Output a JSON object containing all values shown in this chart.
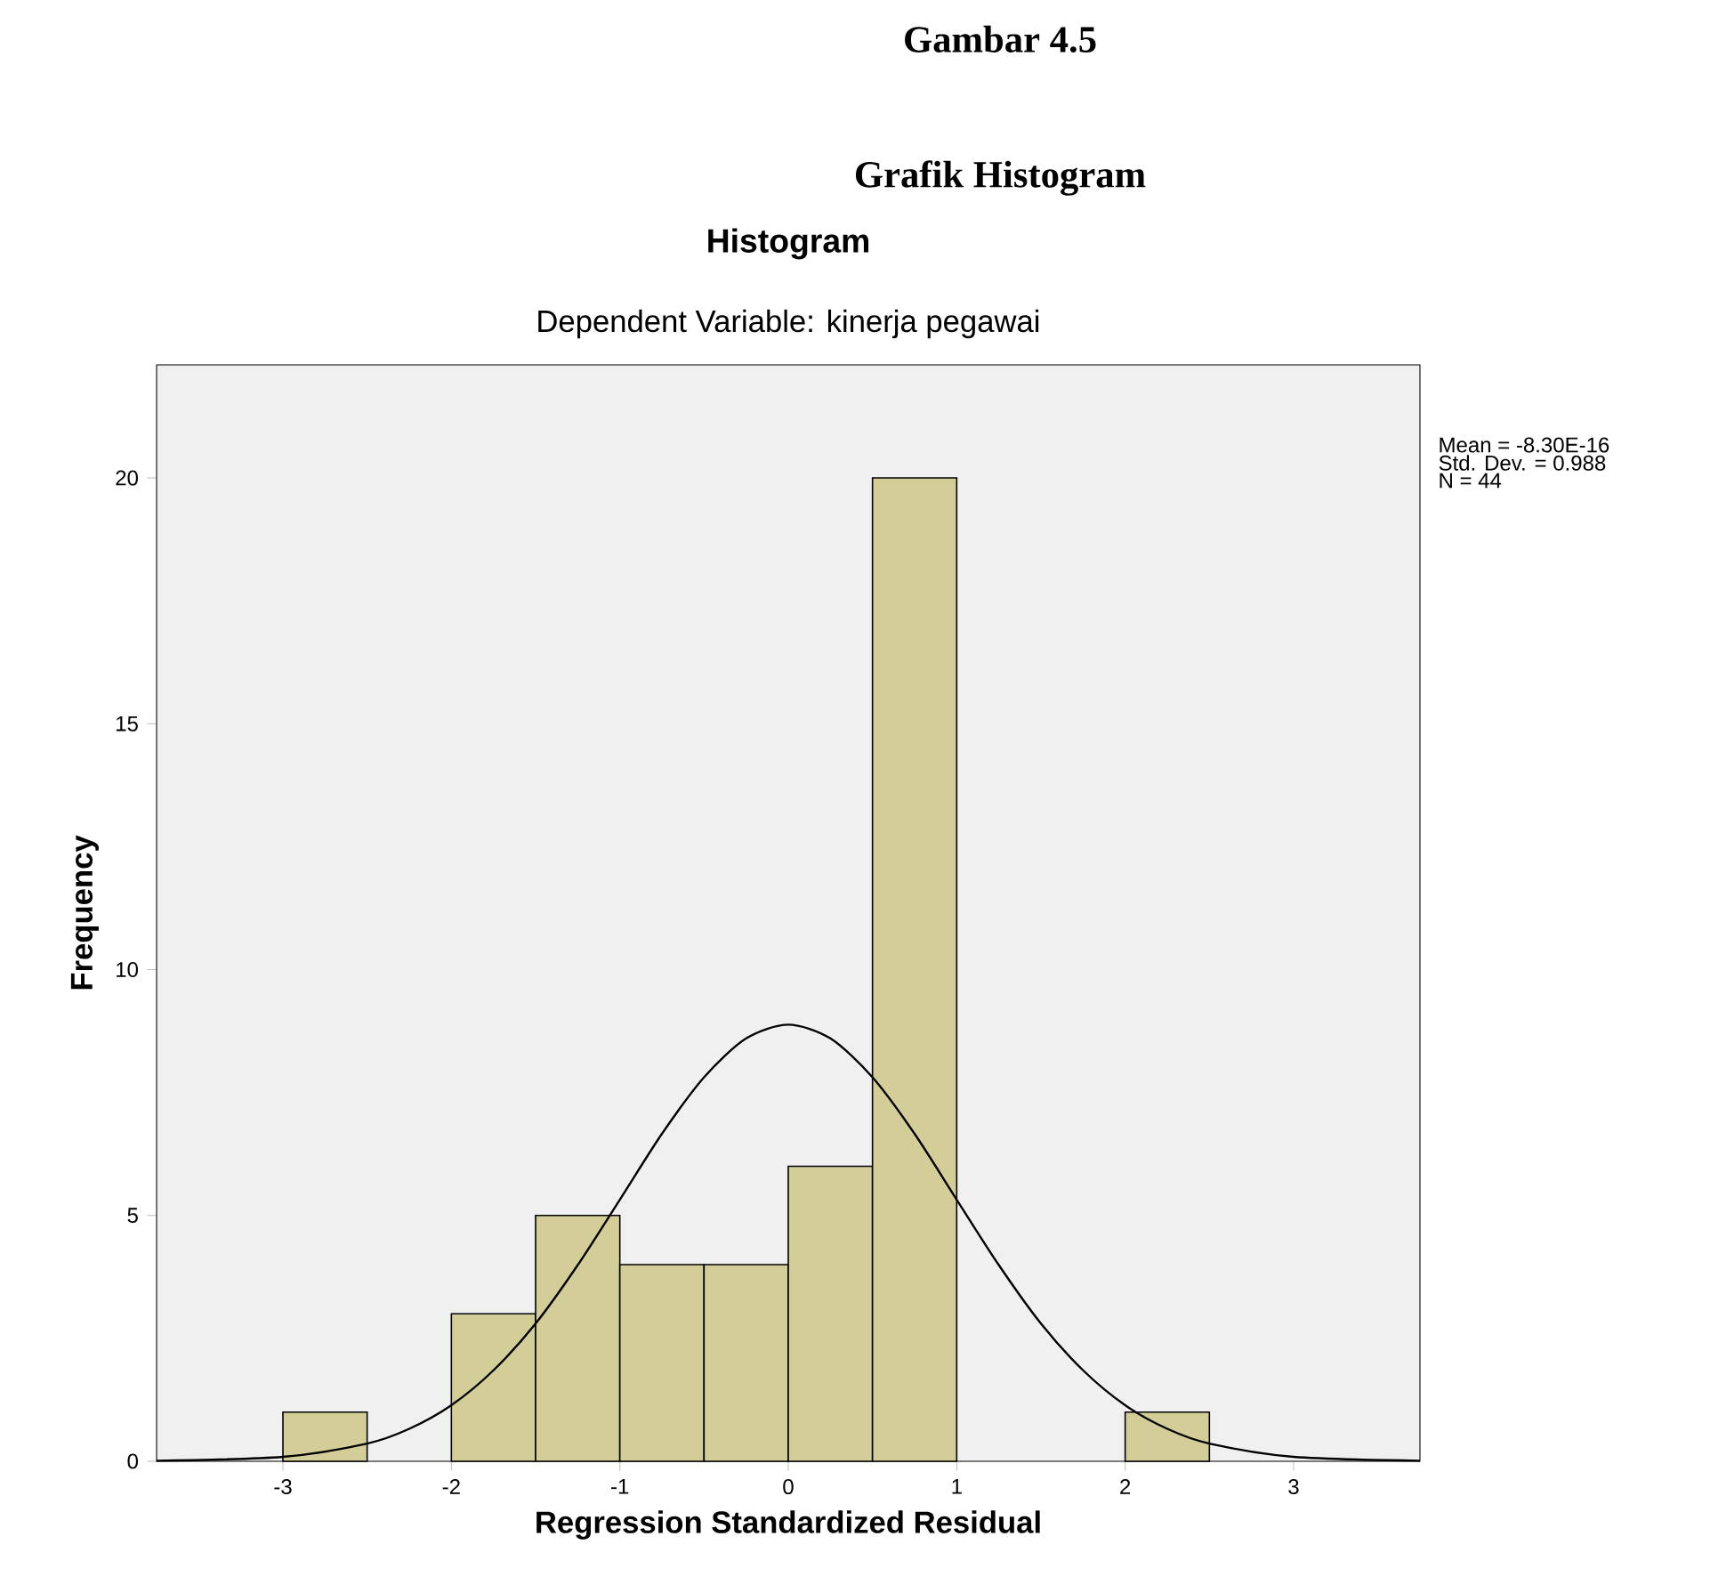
{
  "chart_data": {
    "type": "histogram",
    "title": "Histogram",
    "subtitle": "Dependent Variable: kinerja pegawai",
    "xlabel": "Regression Standardized Residual",
    "ylabel": "Frequency",
    "annotations": [
      "Gambar 4.5",
      "Grafik Histogram",
      "Mean = -8.30E-16",
      "Std. Dev. = 0.988",
      "N = 44"
    ],
    "bins": [
      -3,
      -2.5,
      -2,
      -1.5,
      -1,
      -0.5,
      0,
      0.5,
      1,
      1.5,
      2,
      2.5
    ],
    "values": [
      1,
      0,
      3,
      5,
      4,
      4,
      6,
      20,
      0,
      0,
      1
    ],
    "color": "#d3ce97",
    "series": [
      {
        "type": "line",
        "color": "#000000",
        "x": [
          -3.75,
          -3,
          -2.5,
          -2.25,
          -2,
          -1.75,
          -1.5,
          -1.25,
          -1,
          -0.75,
          -0.5,
          -0.25,
          0,
          0.25,
          0.5,
          0.75,
          1,
          1.25,
          1.5,
          1.75,
          2,
          2.25,
          2.5,
          3,
          3.75
        ],
        "values": [
          0.01,
          0.09,
          0.36,
          0.66,
          1.14,
          1.85,
          2.8,
          3.99,
          5.32,
          6.66,
          7.81,
          8.6,
          8.88,
          8.6,
          7.81,
          6.66,
          5.32,
          3.99,
          2.8,
          1.85,
          1.14,
          0.66,
          0.36,
          0.09,
          0.01
        ]
      }
    ],
    "xlim": [
      -3.75,
      3.75
    ],
    "ylim": [
      0,
      22.3
    ],
    "xticks": [
      -3,
      -2,
      -1,
      0,
      1,
      2,
      3
    ],
    "yticks": [
      0,
      5,
      10,
      15,
      20
    ]
  }
}
